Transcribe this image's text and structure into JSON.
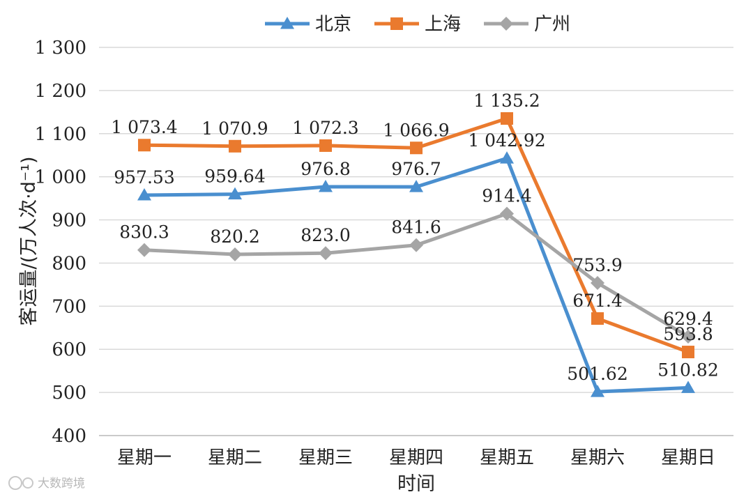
{
  "chart_data": {
    "type": "line",
    "categories": [
      "星期一",
      "星期二",
      "星期三",
      "星期四",
      "星期五",
      "星期六",
      "星期日"
    ],
    "series": [
      {
        "name": "北京",
        "color": "#4a8fcf",
        "marker": "triangle",
        "values": [
          957.53,
          959.64,
          976.8,
          976.7,
          1042.92,
          501.62,
          510.82
        ],
        "labels": [
          "957.53",
          "959.64",
          "976.8",
          "976.7",
          "1 042.92",
          "501.62",
          "510.82"
        ]
      },
      {
        "name": "上海",
        "color": "#ea7a2e",
        "marker": "square",
        "values": [
          1073.4,
          1070.9,
          1072.3,
          1066.9,
          1135.2,
          671.4,
          593.8
        ],
        "labels": [
          "1 073.4",
          "1 070.9",
          "1 072.3",
          "1 066.9",
          "1 135.2",
          "671.4",
          "593.8"
        ]
      },
      {
        "name": "广州",
        "color": "#a5a5a5",
        "marker": "diamond",
        "values": [
          830.3,
          820.2,
          823.0,
          841.6,
          914.4,
          753.9,
          629.4
        ],
        "labels": [
          "830.3",
          "820.2",
          "823.0",
          "841.6",
          "914.4",
          "753.9",
          "629.4"
        ]
      }
    ],
    "ylabel": "客运量/(万人次·d⁻¹)",
    "xlabel": "时间",
    "ylim": [
      400,
      1300
    ],
    "yticks": [
      400,
      500,
      600,
      700,
      800,
      900,
      1000,
      1100,
      1200,
      1300
    ],
    "ytick_labels": [
      "400",
      "500",
      "600",
      "700",
      "800",
      "900",
      "1 000",
      "1 100",
      "1 200",
      "1 300"
    ],
    "grid": true,
    "legend_position": "top-center"
  },
  "watermark": "大数跨境"
}
